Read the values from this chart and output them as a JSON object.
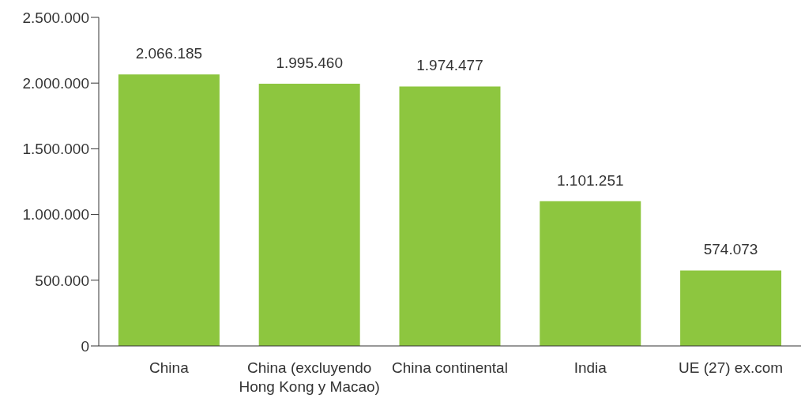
{
  "chart_data": {
    "type": "bar",
    "categories": [
      "China",
      "China (excluyendo Hong Kong y Macao)",
      "China continental",
      "India",
      "UE (27) ex.com"
    ],
    "values": [
      2066185,
      1995460,
      1974477,
      1101251,
      574073
    ],
    "value_labels": [
      "2.066.185",
      "1.995.460",
      "1.974.477",
      "1.101.251",
      "574.073"
    ],
    "color": "#8dc63f",
    "ylim": [
      0,
      2500000
    ],
    "yticks": [
      {
        "value": 0,
        "label": "0"
      },
      {
        "value": 500000,
        "label": "500.000"
      },
      {
        "value": 1000000,
        "label": "1.000.000"
      },
      {
        "value": 1500000,
        "label": "1.500.000"
      },
      {
        "value": 2000000,
        "label": "2.000.000"
      },
      {
        "value": 2500000,
        "label": "2.500.000"
      }
    ],
    "grid": false,
    "legend": false
  }
}
